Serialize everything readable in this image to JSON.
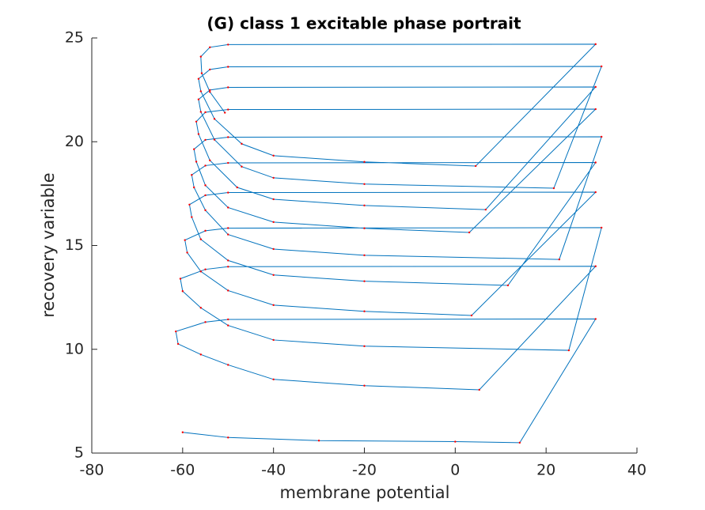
{
  "chart_data": {
    "type": "line",
    "title": "(G) class 1 excitable phase portrait",
    "xlabel": "membrane potential",
    "ylabel": "recovery variable",
    "color": "#0072bd",
    "marker_color": "#ff0000",
    "xlim": [
      -80,
      40
    ],
    "xticks": [
      -80,
      -60,
      -40,
      -20,
      0,
      20,
      40
    ],
    "ylim": [
      5,
      25
    ],
    "yticks": [
      5,
      10,
      15,
      20,
      25
    ],
    "x": [
      -60,
      -50,
      -30,
      0,
      14.2,
      30.9,
      -50,
      -55,
      -61.5,
      -61,
      -56,
      -50,
      -40,
      -20,
      5.3,
      30.9,
      -50,
      -55,
      -60.5,
      -60,
      -56,
      -50,
      -40,
      -20,
      25.0,
      32.2,
      -50,
      -55,
      -59.5,
      -59,
      -56,
      -50,
      -40,
      -20,
      3.6,
      30.9,
      -50,
      -55,
      -58.5,
      -58,
      -56,
      -50,
      -40,
      -20,
      11.6,
      30.9,
      -50,
      -55,
      -58,
      -57.5,
      -55,
      -50,
      -40,
      -20,
      22.9,
      32.2,
      -50,
      -55,
      -57.5,
      -57,
      -55,
      -50,
      -40,
      -20,
      3.1,
      30.9,
      -50,
      -55,
      -57,
      -56.5,
      -54,
      -48,
      -40,
      -20,
      6.7,
      30.9,
      -50,
      -54,
      -56.5,
      -56,
      -53,
      -47,
      -40,
      -20,
      21.7,
      32.2,
      -50,
      -54,
      -56.5,
      -56,
      -53,
      -47,
      -40,
      -20,
      4.5,
      30.9,
      -50,
      -54,
      -56,
      -55.8,
      -54,
      -50.7
    ],
    "values": [
      6.0,
      5.75,
      5.6,
      5.55,
      5.5,
      11.46,
      11.44,
      11.31,
      10.86,
      10.26,
      9.75,
      9.25,
      8.55,
      8.25,
      8.05,
      14.0,
      13.98,
      13.85,
      13.4,
      12.8,
      12.0,
      11.15,
      10.45,
      10.15,
      9.95,
      15.86,
      15.84,
      15.71,
      15.26,
      14.66,
      13.75,
      12.83,
      12.13,
      11.83,
      11.63,
      17.57,
      17.55,
      17.42,
      16.97,
      16.37,
      15.3,
      14.28,
      13.58,
      13.28,
      13.08,
      19.0,
      18.98,
      18.85,
      18.4,
      17.8,
      16.7,
      15.53,
      14.83,
      14.53,
      14.33,
      20.24,
      20.22,
      20.09,
      19.64,
      19.04,
      17.9,
      16.83,
      16.13,
      15.83,
      15.63,
      21.57,
      21.55,
      21.42,
      20.97,
      20.37,
      19.1,
      17.8,
      17.23,
      16.93,
      16.73,
      22.64,
      22.62,
      22.49,
      22.04,
      21.44,
      20.1,
      18.8,
      18.26,
      17.96,
      17.76,
      23.63,
      23.61,
      23.48,
      23.03,
      22.43,
      21.1,
      19.9,
      19.33,
      19.03,
      18.83,
      24.7,
      24.68,
      24.55,
      24.1,
      23.3,
      22.4,
      21.4
    ]
  }
}
